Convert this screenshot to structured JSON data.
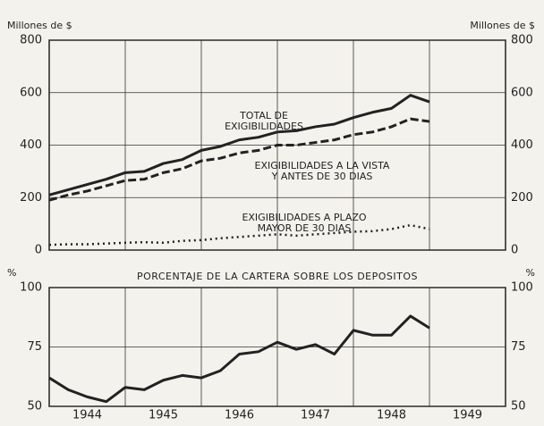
{
  "chart_data": [
    {
      "type": "line",
      "y_label": "Millones de $",
      "x": [
        1944,
        1944.25,
        1944.5,
        1944.75,
        1945,
        1945.25,
        1945.5,
        1945.75,
        1946,
        1946.25,
        1946.5,
        1946.75,
        1947,
        1947.25,
        1947.5,
        1947.75,
        1948,
        1948.25,
        1948.5,
        1948.75,
        1949
      ],
      "xlim": [
        1944,
        1950
      ],
      "xticks": [
        1945,
        1946,
        1947,
        1948,
        1949
      ],
      "ylim": [
        0,
        800
      ],
      "yticks": [
        0,
        200,
        400,
        600,
        800
      ],
      "grid": true,
      "series": [
        {
          "style": "solid",
          "color": "#222222",
          "values": [
            210,
            230,
            250,
            270,
            295,
            300,
            330,
            345,
            380,
            395,
            420,
            430,
            450,
            455,
            470,
            480,
            505,
            525,
            540,
            590,
            565
          ]
        },
        {
          "style": "dashed",
          "color": "#222222",
          "values": [
            190,
            210,
            225,
            245,
            265,
            270,
            295,
            310,
            340,
            350,
            370,
            380,
            400,
            400,
            410,
            420,
            440,
            450,
            470,
            500,
            490
          ]
        },
        {
          "style": "dotted",
          "color": "#222222",
          "values": [
            20,
            22,
            22,
            25,
            28,
            30,
            28,
            35,
            38,
            45,
            50,
            55,
            60,
            55,
            60,
            65,
            70,
            72,
            80,
            95,
            80
          ]
        }
      ],
      "annotations": [
        [
          "TOTAL DE",
          "EXIGIBILIDADES"
        ],
        [
          "EXIGIBILIDADES A LA VISTA",
          "Y ANTES DE 30 DIAS"
        ],
        [
          "EXIGIBILIDADES A PLAZO",
          "MAYOR DE 30 DIAS"
        ]
      ]
    },
    {
      "type": "line",
      "title": "PORCENTAJE DE LA CARTERA SOBRE LOS DEPOSITOS",
      "y_label": "%",
      "x": [
        1944,
        1944.25,
        1944.5,
        1944.75,
        1945,
        1945.25,
        1945.5,
        1945.75,
        1946,
        1946.25,
        1946.5,
        1946.75,
        1947,
        1947.25,
        1947.5,
        1947.75,
        1948,
        1948.25,
        1948.5,
        1948.75,
        1949
      ],
      "xlim": [
        1944,
        1950
      ],
      "xticks": [
        1945,
        1946,
        1947,
        1948,
        1949
      ],
      "ylim": [
        50,
        100
      ],
      "yticks": [
        50,
        75,
        100
      ],
      "grid": true,
      "series": [
        {
          "style": "solid",
          "color": "#222222",
          "values": [
            62,
            57,
            54,
            52,
            58,
            57,
            61,
            63,
            62,
            65,
            72,
            73,
            77,
            74,
            76,
            72,
            82,
            80,
            80,
            88,
            83
          ]
        }
      ],
      "categories": [
        "1944",
        "1945",
        "1946",
        "1947",
        "1948",
        "1949"
      ]
    }
  ]
}
